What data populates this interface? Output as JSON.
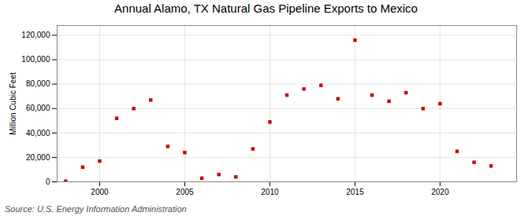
{
  "chart_data": {
    "type": "scatter",
    "title": "Annual Alamo, TX Natural Gas Pipeline Exports to Mexico",
    "ylabel": "Million Cubic Feet",
    "source": "Source: U.S. Energy Information Administration",
    "x": [
      1998,
      1999,
      2000,
      2001,
      2002,
      2003,
      2004,
      2005,
      2006,
      2007,
      2008,
      2009,
      2010,
      2011,
      2012,
      2013,
      2014,
      2015,
      2016,
      2017,
      2018,
      2019,
      2020,
      2021,
      2022,
      2023
    ],
    "values": [
      500,
      12000,
      17000,
      52000,
      60000,
      67000,
      29000,
      24000,
      3000,
      6000,
      4000,
      27000,
      49000,
      71000,
      76000,
      79000,
      68000,
      116000,
      71000,
      66000,
      73000,
      60000,
      64000,
      25000,
      16000,
      13000
    ],
    "color": "#cc0000",
    "marker": "square",
    "grid": true,
    "xlim": [
      1997.5,
      2024.5
    ],
    "ylim": [
      0,
      128000
    ],
    "xticks": [
      2000,
      2005,
      2010,
      2015,
      2020
    ],
    "yticks": [
      0,
      {
        "value": 20000,
        "label": "20,000"
      },
      {
        "value": 40000,
        "label": "40,000"
      },
      {
        "value": 60000,
        "label": "60,000"
      },
      {
        "value": 80000,
        "label": "80,000"
      },
      {
        "value": 100000,
        "label": "100,000"
      },
      {
        "value": 120000,
        "label": "120,000"
      }
    ]
  }
}
